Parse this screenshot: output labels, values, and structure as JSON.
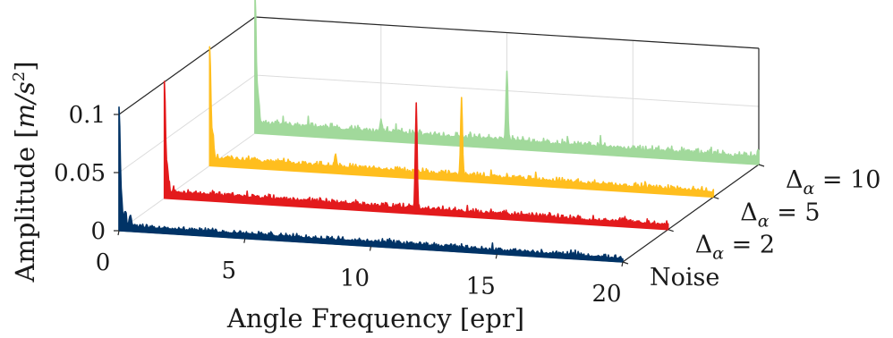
{
  "chart_data": {
    "type": "line",
    "view": "3d-waterfall",
    "xlabel": "Angle Frequency [epr]",
    "ylabel": "Amplitude [m/s²]",
    "ylabel_base": "Amplitude [",
    "ylabel_unit": "m/s",
    "ylabel_exp": "2",
    "ylabel_close": "]",
    "xlim": [
      0,
      20
    ],
    "zlim": [
      0,
      0.1
    ],
    "x_ticks": [
      "0",
      "5",
      "10",
      "15",
      "20"
    ],
    "z_ticks": [
      "0",
      "0.05",
      "0.1"
    ],
    "grid": true,
    "series": [
      {
        "name": "Noise",
        "name_base": "Noise",
        "name_sub": "",
        "name_eq": "",
        "color": "#003366",
        "baseline": 0.004,
        "noise": 0.004,
        "peaks": [
          {
            "x": 0.0,
            "y": 0.1
          },
          {
            "x": 0.1,
            "y": 0.02
          },
          {
            "x": 0.25,
            "y": 0.012
          },
          {
            "x": 0.45,
            "y": 0.008
          }
        ]
      },
      {
        "name": "Δα = 2",
        "name_base": "Δ",
        "name_sub": "α",
        "name_eq": " = 2",
        "color": "#e31a1c",
        "baseline": 0.005,
        "noise": 0.005,
        "peaks": [
          {
            "x": 0.0,
            "y": 0.095
          },
          {
            "x": 0.12,
            "y": 0.02
          },
          {
            "x": 10.0,
            "y": 0.087
          }
        ]
      },
      {
        "name": "Δα = 5",
        "name_base": "Δ",
        "name_sub": "α",
        "name_eq": " = 5",
        "color": "#ffbe1e",
        "baseline": 0.006,
        "noise": 0.005,
        "peaks": [
          {
            "x": 0.0,
            "y": 0.095
          },
          {
            "x": 0.12,
            "y": 0.02
          },
          {
            "x": 5.0,
            "y": 0.009
          },
          {
            "x": 10.0,
            "y": 0.065
          }
        ]
      },
      {
        "name": "Δα = 10",
        "name_base": "Δ",
        "name_sub": "α",
        "name_eq": " = 10",
        "color": "#a1d99b",
        "baseline": 0.008,
        "noise": 0.006,
        "peaks": [
          {
            "x": 0.0,
            "y": 0.11
          },
          {
            "x": 0.12,
            "y": 0.025
          },
          {
            "x": 5.0,
            "y": 0.01
          },
          {
            "x": 10.0,
            "y": 0.06
          },
          {
            "x": 20.0,
            "y": 0.006
          }
        ]
      }
    ]
  }
}
